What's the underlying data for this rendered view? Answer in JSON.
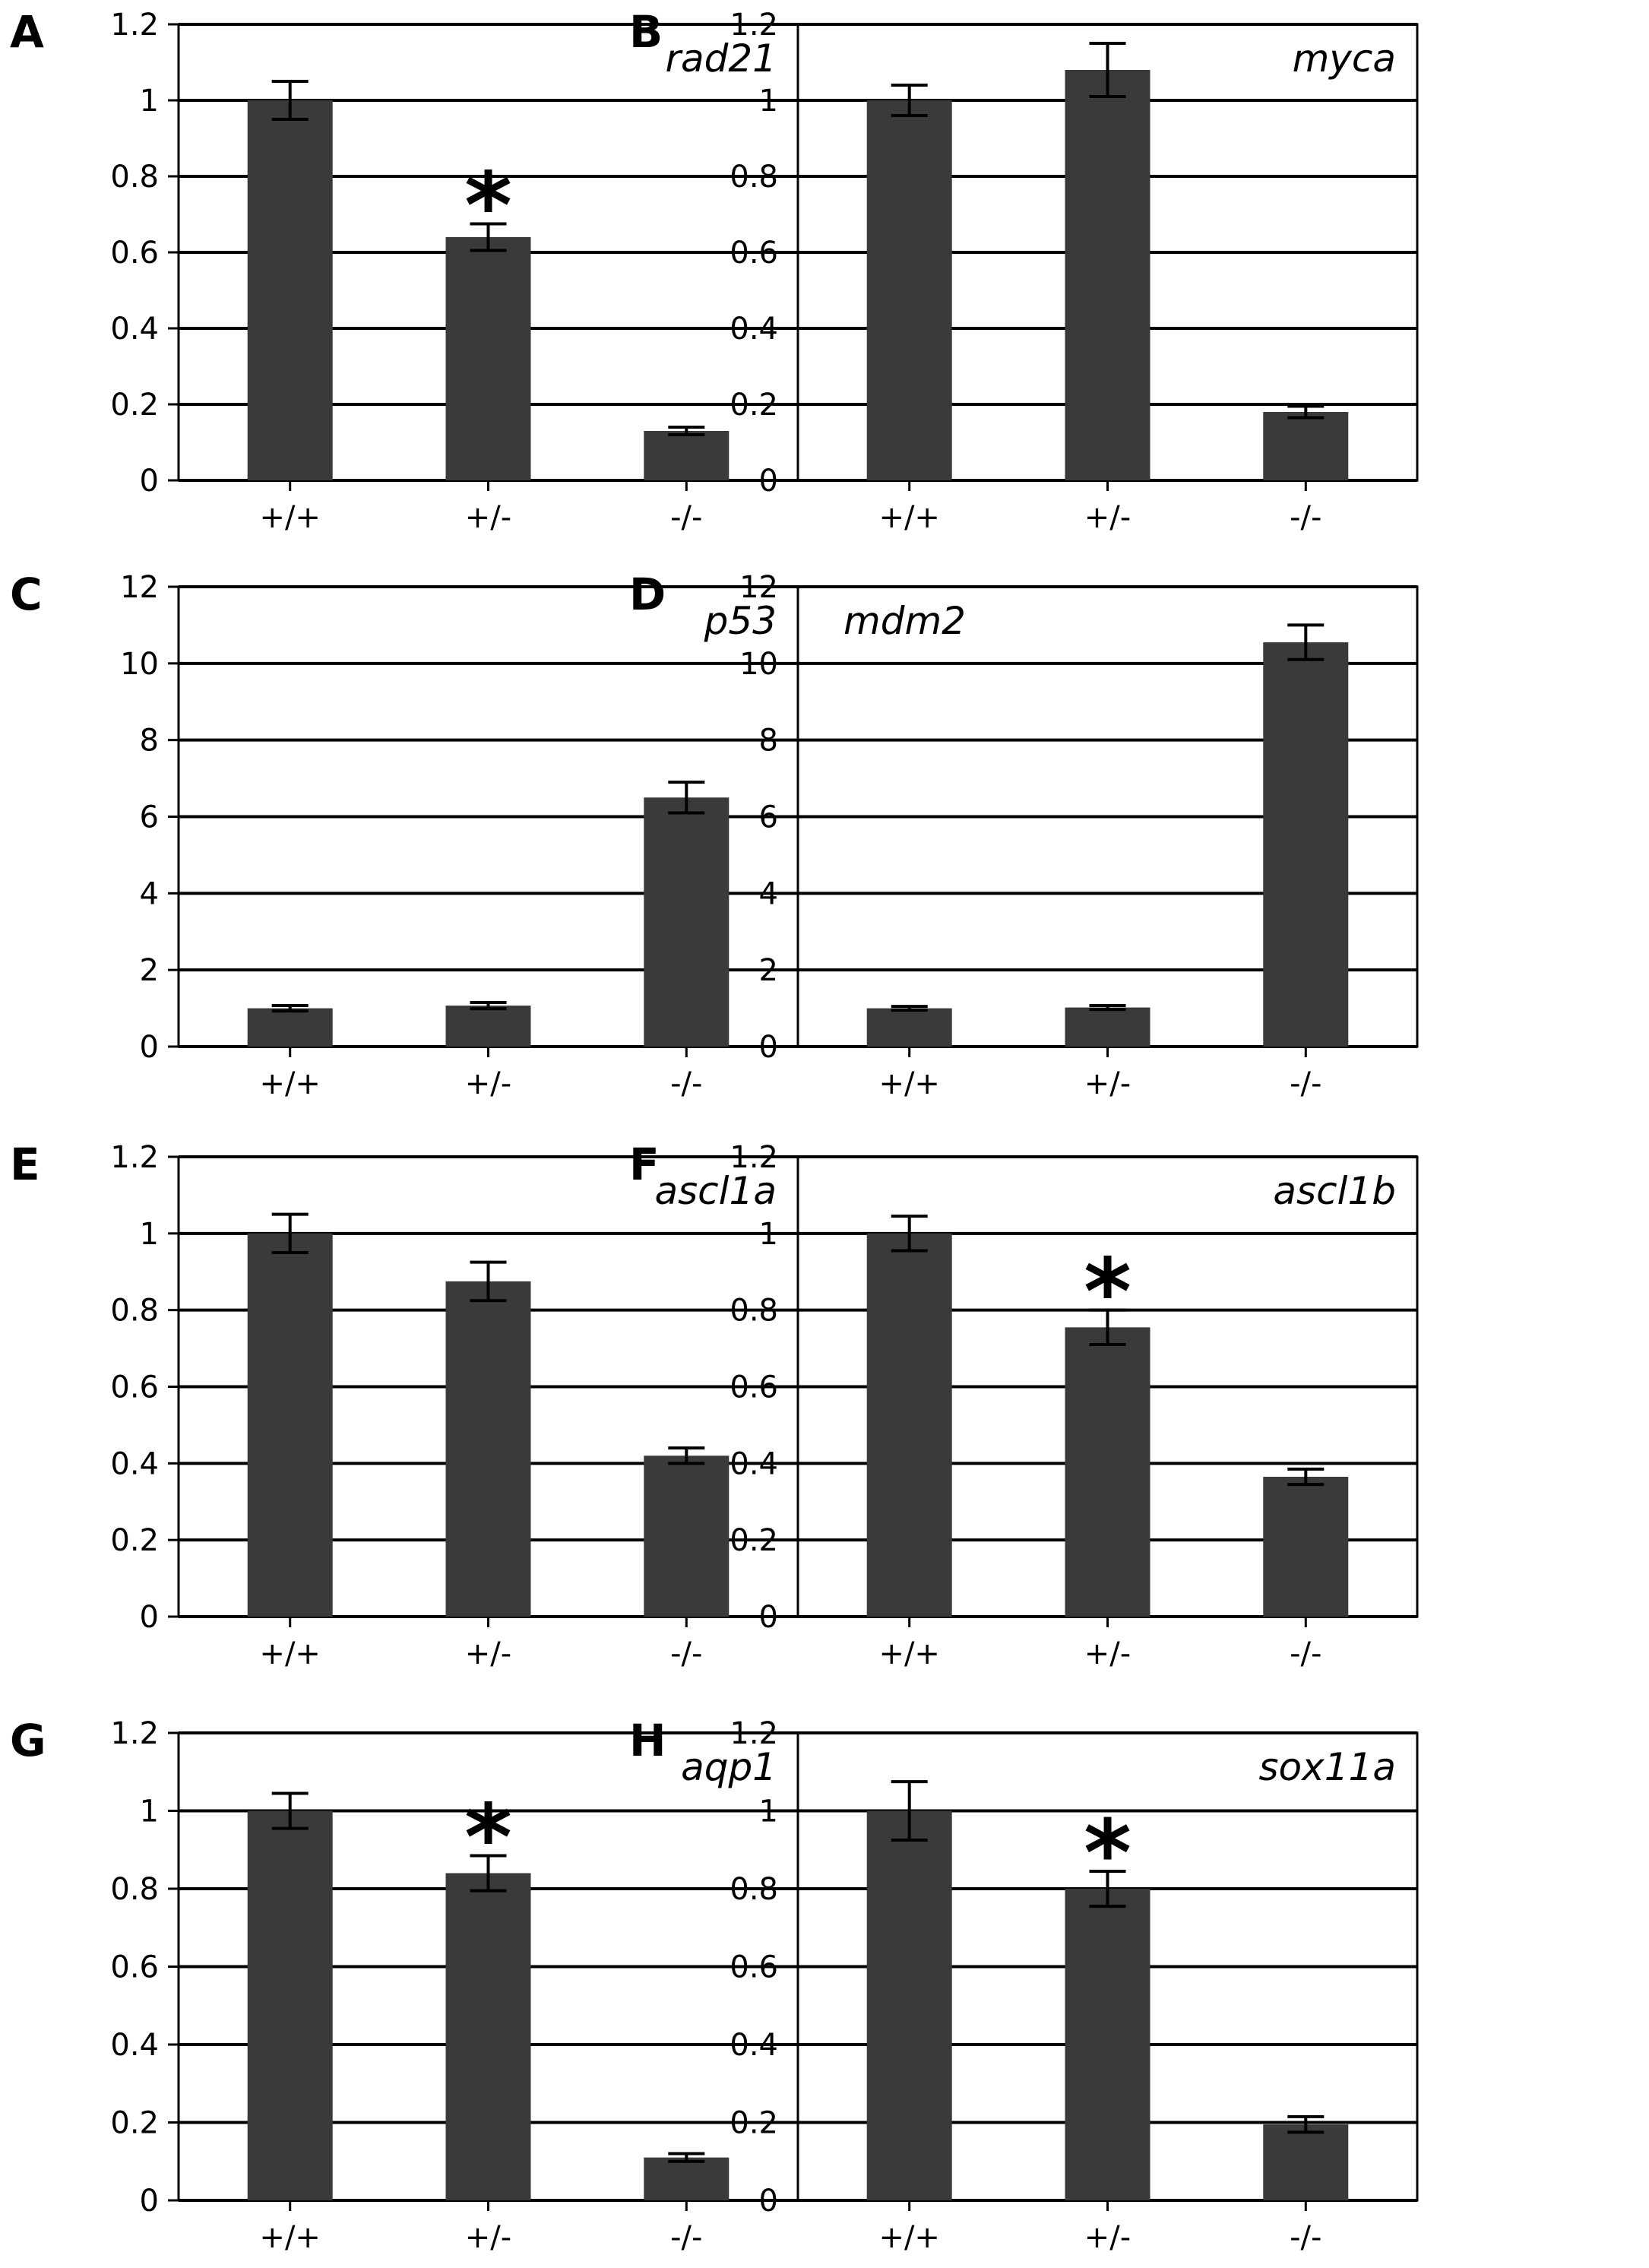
{
  "colors": {
    "bar": "#3a3a3a",
    "axis": "#000000",
    "grid": "#000000",
    "background": "#ffffff"
  },
  "chart_data": [
    {
      "panel": "A",
      "gene": "rad21",
      "type": "bar",
      "categories": [
        "+/+",
        "+/-",
        "-/-"
      ],
      "values": [
        1.0,
        0.64,
        0.13
      ],
      "errors": [
        0.05,
        0.035,
        0.01
      ],
      "significant": [
        "",
        "*",
        ""
      ],
      "ylim": [
        0,
        1.2
      ],
      "ytick_labels": [
        "0",
        "0.2",
        "0.4",
        "0.6",
        "0.8",
        "1",
        "1.2"
      ],
      "grid": true
    },
    {
      "panel": "B",
      "gene": "myca",
      "type": "bar",
      "categories": [
        "+/+",
        "+/-",
        "-/-"
      ],
      "values": [
        1.0,
        1.08,
        0.18
      ],
      "errors": [
        0.04,
        0.07,
        0.015
      ],
      "significant": [
        "",
        "",
        ""
      ],
      "ylim": [
        0,
        1.2
      ],
      "ytick_labels": [
        "0",
        "0.2",
        "0.4",
        "0.6",
        "0.8",
        "1",
        "1.2"
      ],
      "grid": true
    },
    {
      "panel": "C",
      "gene": "p53",
      "type": "bar",
      "categories": [
        "+/+",
        "+/-",
        "-/-"
      ],
      "values": [
        1.0,
        1.07,
        6.5
      ],
      "errors": [
        0.07,
        0.08,
        0.4
      ],
      "significant": [
        "",
        "",
        ""
      ],
      "ylim": [
        0,
        12
      ],
      "ytick_labels": [
        "0",
        "2",
        "4",
        "6",
        "8",
        "10",
        "12"
      ],
      "grid": true
    },
    {
      "panel": "D",
      "gene": "mdm2",
      "type": "bar",
      "categories": [
        "+/+",
        "+/-",
        "-/-"
      ],
      "values": [
        1.0,
        1.02,
        10.55
      ],
      "errors": [
        0.05,
        0.05,
        0.45
      ],
      "significant": [
        "",
        "",
        ""
      ],
      "ylim": [
        0,
        12
      ],
      "ytick_labels": [
        "0",
        "2",
        "4",
        "6",
        "8",
        "10",
        "12"
      ],
      "grid": true
    },
    {
      "panel": "E",
      "gene": "ascl1a",
      "type": "bar",
      "categories": [
        "+/+",
        "+/-",
        "-/-"
      ],
      "values": [
        1.0,
        0.875,
        0.42
      ],
      "errors": [
        0.05,
        0.05,
        0.02
      ],
      "significant": [
        "",
        "",
        ""
      ],
      "ylim": [
        0,
        1.2
      ],
      "ytick_labels": [
        "0",
        "0.2",
        "0.4",
        "0.6",
        "0.8",
        "1",
        "1.2"
      ],
      "grid": true
    },
    {
      "panel": "F",
      "gene": "ascl1b",
      "type": "bar",
      "categories": [
        "+/+",
        "+/-",
        "-/-"
      ],
      "values": [
        1.0,
        0.755,
        0.365
      ],
      "errors": [
        0.045,
        0.045,
        0.02
      ],
      "significant": [
        "",
        "*",
        ""
      ],
      "ylim": [
        0,
        1.2
      ],
      "ytick_labels": [
        "0",
        "0.2",
        "0.4",
        "0.6",
        "0.8",
        "1",
        "1.2"
      ],
      "grid": true
    },
    {
      "panel": "G",
      "gene": "aqp1",
      "type": "bar",
      "categories": [
        "+/+",
        "+/-",
        "-/-"
      ],
      "values": [
        1.0,
        0.84,
        0.11
      ],
      "errors": [
        0.045,
        0.045,
        0.01
      ],
      "significant": [
        "",
        "*",
        ""
      ],
      "ylim": [
        0,
        1.2
      ],
      "ytick_labels": [
        "0",
        "0.2",
        "0.4",
        "0.6",
        "0.8",
        "1",
        "1.2"
      ],
      "grid": true
    },
    {
      "panel": "H",
      "gene": "sox11a",
      "type": "bar",
      "categories": [
        "+/+",
        "+/-",
        "-/-"
      ],
      "values": [
        1.0,
        0.8,
        0.195
      ],
      "errors": [
        0.075,
        0.045,
        0.02
      ],
      "significant": [
        "",
        "*",
        ""
      ],
      "ylim": [
        0,
        1.2
      ],
      "ytick_labels": [
        "0",
        "0.2",
        "0.4",
        "0.6",
        "0.8",
        "1",
        "1.2"
      ],
      "grid": true
    }
  ]
}
